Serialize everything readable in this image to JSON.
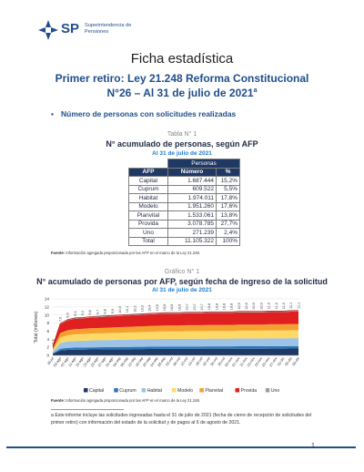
{
  "header": {
    "logo_text": "SP",
    "org_line1": "Superintendencia de",
    "org_line2": "Pensiones"
  },
  "title": "Ficha estadística",
  "subtitle1": "Primer retiro: Ley 21.248 Reforma Constitucional",
  "subtitle2": "N°26 – Al 31 de julio de 2021",
  "subtitle2_sup": "a",
  "section": "Número de personas con solicitudes realizadas",
  "table1": {
    "caption": "Tabla N° 1",
    "heading": "N° acumulado de personas, según AFP",
    "date": "Al 31 de julio de 2021",
    "group_header": "Personas",
    "col_afp": "AFP",
    "col_num": "Número",
    "col_pct": "%",
    "rows": [
      {
        "afp": "Capital",
        "num": "1.687.444",
        "pct": "15,2%"
      },
      {
        "afp": "Cuprum",
        "num": "609.522",
        "pct": "5,5%"
      },
      {
        "afp": "Habitat",
        "num": "1.974.011",
        "pct": "17,8%"
      },
      {
        "afp": "Modelo",
        "num": "1.951.260",
        "pct": "17,6%"
      },
      {
        "afp": "Planvital",
        "num": "1.533.061",
        "pct": "13,8%"
      },
      {
        "afp": "Provida",
        "num": "3.078.785",
        "pct": "27,7%"
      },
      {
        "afp": "Uno",
        "num": "271.239",
        "pct": "2,4%"
      },
      {
        "afp": "Total",
        "num": "11.105.322",
        "pct": "100%"
      }
    ],
    "source_bold": "Fuente:",
    "source": " Información agregada proporcionada por las AFP en el marco de la Ley 21.248."
  },
  "figure1": {
    "caption": "Gráfico N° 1",
    "heading": "N° acumulado de personas por AFP, según fecha de ingreso de la solicitud",
    "date": "Al 31 de julio de 2021",
    "source_bold": "Fuente:",
    "source": " Información agregada proporcionada por las AFP en el marco de la Ley 21.248."
  },
  "chart_data": {
    "type": "area",
    "stacked": true,
    "ylabel": "Total (millones)",
    "ylim": [
      0,
      14
    ],
    "yticks": [
      0,
      2,
      4,
      6,
      8,
      10,
      12,
      14
    ],
    "x": [
      "30-jul",
      "01-ago",
      "04-ago",
      "07-ago",
      "10-ago",
      "13-ago",
      "16-ago",
      "19-ago",
      "22-ago",
      "25-ago",
      "28-ago",
      "31-ago",
      "03-sep",
      "06-sep",
      "09-sep",
      "12-sep",
      "15-sep",
      "18-sep",
      "21-sep",
      "24-sep",
      "27-sep",
      "30-sep",
      "03-oct",
      "06-oct",
      "09-oct",
      "12-oct",
      "15-oct",
      "18-oct",
      "21-oct",
      "24-oct",
      "27-oct",
      "30-oct",
      "02-nov",
      "05-nov",
      "08-nov",
      "11-nov",
      "14-nov",
      "17-nov",
      "20-nov",
      "23-nov",
      "26-nov",
      "29-nov",
      "02-dic",
      "05-dic",
      "08-dic",
      "11-dic",
      "14-dic",
      "17-dic",
      "20-dic",
      "23-dic",
      "26-dic",
      "29-dic",
      "01-ene",
      "04-ene",
      "07-ene",
      "10-ene",
      "13-ene",
      "16-ene",
      "19-ene",
      "22-ene",
      "25-ene",
      "28-ene",
      "31-ene",
      "03-feb",
      "06-feb",
      "09-feb",
      "12-feb",
      "15-feb",
      "18-feb",
      "21-feb",
      "24-feb",
      "27-feb",
      "02-mar",
      "05-mar",
      "08-mar",
      "11-mar",
      "14-mar",
      "17-mar",
      "20-mar",
      "23-mar",
      "26-mar",
      "29-mar",
      "01-abr",
      "04-abr",
      "07-abr",
      "10-abr",
      "13-abr",
      "16-abr",
      "19-abr",
      "22-abr",
      "25-abr",
      "28-abr",
      "01-may",
      "04-may",
      "07-may",
      "10-may",
      "13-may",
      "16-may",
      "19-may",
      "22-may",
      "25-may",
      "28-may",
      "31-may",
      "03-jun",
      "06-jun",
      "09-jun",
      "12-jun",
      "15-jun",
      "18-jun",
      "21-jun",
      "24-jun",
      "27-jun",
      "30-jun",
      "03-jul",
      "06-jul",
      "09-jul",
      "12-jul",
      "15-jul",
      "18-jul",
      "21-jul",
      "24-jul",
      "27-jul",
      "30-jul"
    ],
    "total_labels": [
      {
        "x": "30-jul",
        "label": "2,3"
      },
      {
        "x": "03-ago",
        "label": "7,9"
      },
      {
        "x": "07-ago",
        "label": "8,9"
      },
      {
        "x": "11-ago",
        "label": "9,3"
      },
      {
        "x": "15-ago",
        "label": "9,4"
      },
      {
        "x": "19-ago",
        "label": "9,6"
      },
      {
        "x": "23-ago",
        "label": "9,7"
      },
      {
        "x": "27-ago",
        "label": "9,8"
      },
      {
        "x": "31-ago",
        "label": "9,9"
      },
      {
        "x": "04-sep",
        "label": "10,0"
      },
      {
        "x": "08-sep",
        "label": "10,1"
      },
      {
        "x": "12-sep",
        "label": "10,2"
      },
      {
        "x": "16-sep",
        "label": "10,3"
      },
      {
        "x": "20-sep",
        "label": "10,4"
      },
      {
        "x": "24-sep",
        "label": "10,5"
      },
      {
        "x": "28-sep",
        "label": "10,6"
      },
      {
        "x": "02-oct",
        "label": "10,6"
      },
      {
        "x": "06-oct",
        "label": "10,6"
      },
      {
        "x": "10-oct",
        "label": "10,7"
      },
      {
        "x": "14-oct",
        "label": "10,7"
      },
      {
        "x": "18-oct",
        "label": "10,7"
      },
      {
        "x": "22-oct",
        "label": "10,8"
      },
      {
        "x": "26-oct",
        "label": "10,8"
      },
      {
        "x": "30-oct",
        "label": "10,8"
      },
      {
        "x": "03-nov",
        "label": "10,8"
      },
      {
        "x": "07-nov",
        "label": "10,9"
      },
      {
        "x": "11-nov",
        "label": "10,9"
      },
      {
        "x": "15-nov",
        "label": "10,9"
      },
      {
        "x": "19-nov",
        "label": "10,9"
      },
      {
        "x": "23-nov",
        "label": "11,0"
      },
      {
        "x": "27-nov",
        "label": "11,0"
      },
      {
        "x": "01-dic",
        "label": "11,0"
      },
      {
        "x": "05-dic",
        "label": "11,1"
      },
      {
        "x": "09-dic",
        "label": "11,1"
      }
    ],
    "x_tick_labels": [
      "30-jul",
      "03-ago",
      "07-ago",
      "11-ago",
      "15-ago",
      "19-ago",
      "23-ago",
      "27-ago",
      "31-ago",
      "04-sep",
      "08-sep",
      "12-sep",
      "16-sep",
      "20-sep",
      "24-sep",
      "28-sep",
      "02-oct",
      "06-oct",
      "10-oct",
      "14-oct",
      "18-oct",
      "22-oct",
      "26-oct",
      "30-oct",
      "03-nov",
      "07-nov",
      "11-nov",
      "15-nov",
      "19-nov",
      "23-nov",
      "27-nov",
      "01-dic",
      "05-dic",
      "09-dic"
    ],
    "series": [
      {
        "name": "Capital",
        "color": "#1f3864",
        "share": 0.152
      },
      {
        "name": "Cuprum",
        "color": "#2e75b6",
        "share": 0.055
      },
      {
        "name": "Habitat",
        "color": "#9dc3e6",
        "share": 0.178
      },
      {
        "name": "Modelo",
        "color": "#ffd966",
        "share": 0.176
      },
      {
        "name": "Planvital",
        "color": "#f4a030",
        "share": 0.138
      },
      {
        "name": "Provida",
        "color": "#e02020",
        "share": 0.277
      },
      {
        "name": "Uno",
        "color": "#9e9e9e",
        "share": 0.024
      }
    ],
    "legend_position": "bottom"
  },
  "footnote": "a Este informe incluye las solicitudes ingresadas hasta el 31 de julio de 2021 (fecha de cierre de recepción de solicitudes del primer retiro) con información del estado de la solicitud y de pagos al 6 de agosto de 2021.",
  "page_number": "1"
}
